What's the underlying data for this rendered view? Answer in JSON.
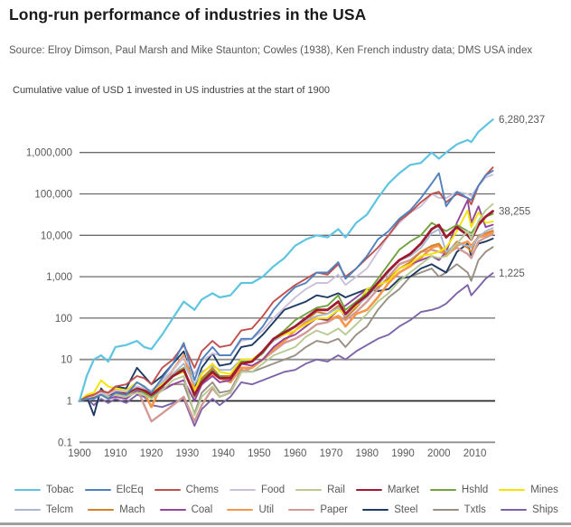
{
  "page": {
    "title": "Long-run performance of industries in the USA",
    "source_line": "Source: Elroy Dimson, Paul Marsh and Mike Staunton; Cowles (1938), Ken French industry data; DMS USA index",
    "subtitle": "Cumulative value of USD 1 invested in US industries at the start of 1900"
  },
  "colors": {
    "title_text": "#1a1a1a",
    "body_text": "#595959",
    "grid": "#6b6b6b",
    "grid_unit_line": "#262626",
    "grid_light": "#8f8f8f",
    "bottom_rule": "#9e9e9e"
  },
  "chart_data": {
    "type": "line",
    "title": "Cumulative value of USD 1 invested in US industries at the start of 1900",
    "xlabel": "",
    "ylabel": "",
    "y_scale": "log10",
    "x_range": [
      1900,
      2015
    ],
    "y_range": [
      0.1,
      7000000
    ],
    "grid": "horizontal-only",
    "legend_position": "bottom",
    "x_ticks": [
      1900,
      1910,
      1920,
      1930,
      1940,
      1950,
      1960,
      1970,
      1980,
      1990,
      2000,
      2010
    ],
    "y_ticks": [
      {
        "label": "0.1",
        "value": 0.1
      },
      {
        "label": "1",
        "value": 1
      },
      {
        "label": "10",
        "value": 10
      },
      {
        "label": "100",
        "value": 100
      },
      {
        "label": "1,000",
        "value": 1000
      },
      {
        "label": "10,000",
        "value": 10000
      },
      {
        "label": "100,000",
        "value": 100000
      },
      {
        "label": "1,000,000",
        "value": 1000000
      }
    ],
    "annotations": [
      {
        "text": "6,280,237",
        "series": "Tobac"
      },
      {
        "text": "38,255",
        "series": "Market"
      },
      {
        "text": "1,225",
        "series": "Ships"
      }
    ],
    "years": [
      1900,
      1902,
      1904,
      1906,
      1908,
      1910,
      1913,
      1916,
      1918,
      1920,
      1923,
      1926,
      1929,
      1932,
      1934,
      1937,
      1939,
      1942,
      1945,
      1948,
      1951,
      1954,
      1957,
      1960,
      1963,
      1966,
      1969,
      1972,
      1974,
      1977,
      1980,
      1983,
      1986,
      1989,
      1992,
      1995,
      1998,
      2000,
      2002,
      2005,
      2008,
      2009,
      2011,
      2013,
      2015
    ],
    "series": [
      {
        "name": "Tobac",
        "color": "#5fc4e1",
        "width": 2.2,
        "values": [
          1,
          4,
          10,
          12.6,
          8.9,
          20,
          22.4,
          28.2,
          20,
          17.8,
          39.8,
          100,
          251,
          158,
          282,
          398,
          316,
          355,
          708,
          708,
          1000,
          1780,
          2820,
          5620,
          7940,
          10000,
          8910,
          14100,
          8910,
          20000,
          31600,
          79400,
          178000,
          316000,
          501000,
          562000,
          1000000,
          708000,
          1000000,
          1580000,
          2000000,
          1780000,
          3160000,
          4470000,
          6280237
        ]
      },
      {
        "name": "ElcEq",
        "color": "#4f81bd",
        "width": 1.9,
        "values": [
          1,
          1.12,
          1.12,
          1.41,
          1.12,
          1.58,
          1.41,
          2.82,
          2.24,
          1.58,
          3.55,
          7.94,
          25.1,
          3.16,
          10,
          20,
          12.6,
          12.6,
          31.6,
          31.6,
          63.1,
          158,
          316,
          562,
          708,
          1260,
          1260,
          2240,
          891,
          1580,
          3160,
          7940,
          12600,
          25100,
          39800,
          79400,
          178000,
          316000,
          50100,
          112000,
          79400,
          70800,
          158000,
          282000,
          363000
        ]
      },
      {
        "name": "Chems",
        "color": "#c0504d",
        "width": 1.9,
        "values": [
          1,
          1.26,
          1.41,
          1.78,
          1.58,
          2.24,
          2.51,
          3.98,
          3.55,
          2.51,
          6.31,
          10,
          22.4,
          6.31,
          15.8,
          28.2,
          20,
          22.4,
          50.1,
          56.2,
          112,
          251,
          398,
          631,
          891,
          1260,
          1120,
          2000,
          1000,
          1580,
          2820,
          5010,
          10000,
          22400,
          35500,
          63100,
          100000,
          112000,
          63100,
          100000,
          79400,
          56200,
          158000,
          282000,
          437000
        ]
      },
      {
        "name": "Food",
        "color": "#ccc0da",
        "width": 1.9,
        "values": [
          1,
          1.2,
          1.32,
          1.58,
          1.41,
          1.78,
          1.66,
          2.24,
          2,
          1.78,
          3.16,
          5.62,
          11.2,
          4.47,
          8.91,
          14.1,
          12.6,
          12.6,
          28.2,
          31.6,
          50.1,
          100,
          178,
          316,
          501,
          708,
          708,
          1120,
          631,
          1000,
          1580,
          3980,
          10000,
          20000,
          35500,
          50100,
          100000,
          79400,
          79400,
          112000,
          100000,
          89100,
          158000,
          251000,
          290000
        ]
      },
      {
        "name": "Rail",
        "color": "#b7ca92",
        "width": 1.9,
        "values": [
          1,
          1.26,
          1.32,
          1.58,
          1.26,
          1.41,
          1.26,
          1.58,
          1.41,
          1.12,
          1.78,
          3.16,
          3.98,
          0.45,
          1.26,
          2.24,
          1.26,
          1.58,
          5.01,
          5.01,
          7.94,
          12.6,
          15.8,
          20,
          35.5,
          50.1,
          39.8,
          56.2,
          39.8,
          70.8,
          126,
          251,
          398,
          794,
          1260,
          2000,
          3160,
          2820,
          3160,
          6310,
          12600,
          7940,
          22400,
          39800,
          57000
        ]
      },
      {
        "name": "Market",
        "color": "#9e1b32",
        "width": 2.8,
        "values": [
          1,
          1.2,
          1.32,
          1.66,
          1.32,
          1.66,
          1.51,
          2.09,
          1.78,
          1.41,
          2.24,
          3.98,
          5.62,
          1.41,
          2.82,
          5.01,
          3.55,
          3.55,
          7.94,
          8.91,
          15.8,
          31.6,
          44.7,
          63.1,
          100,
          158,
          158,
          251,
          126,
          224,
          355,
          708,
          1410,
          2510,
          3550,
          6310,
          14100,
          17800,
          8910,
          15800,
          10000,
          7940,
          17800,
          28200,
          38255
        ]
      },
      {
        "name": "Hshld",
        "color": "#72a23f",
        "width": 1.9,
        "values": [
          1,
          1.12,
          1.26,
          1.51,
          1.26,
          1.58,
          1.41,
          2,
          1.58,
          1.26,
          2.24,
          3.98,
          6.31,
          1.26,
          3.16,
          5.62,
          3.98,
          3.55,
          8.91,
          8.91,
          14.1,
          31.6,
          50.1,
          89.1,
          126,
          178,
          200,
          355,
          158,
          251,
          398,
          891,
          2000,
          4470,
          7080,
          10000,
          20000,
          15800,
          12600,
          17800,
          12600,
          11200,
          20000,
          28200,
          33000
        ]
      },
      {
        "name": "Mines",
        "color": "#f5e400",
        "width": 1.9,
        "values": [
          1,
          1.41,
          1.58,
          3.16,
          2.24,
          2,
          1.78,
          2.82,
          2.24,
          1.58,
          2.51,
          3.98,
          5.01,
          1.78,
          4.47,
          7.94,
          5.01,
          4.47,
          10,
          10,
          15.8,
          31.6,
          39.8,
          50.1,
          70.8,
          100,
          100,
          158,
          126,
          200,
          501,
          631,
          794,
          1580,
          2000,
          3160,
          3550,
          3980,
          5010,
          12600,
          39800,
          15800,
          35500,
          20000,
          21500
        ]
      },
      {
        "name": "Telcm",
        "color": "#a8b8ce",
        "width": 1.9,
        "values": [
          1,
          1.2,
          1.41,
          1.58,
          1.41,
          1.78,
          1.78,
          2.24,
          2,
          1.78,
          2.82,
          4.47,
          7.94,
          2.51,
          5.01,
          7.08,
          5.62,
          5.62,
          10,
          10,
          15.8,
          28.2,
          39.8,
          63.1,
          89.1,
          112,
          126,
          178,
          112,
          200,
          316,
          631,
          1260,
          2510,
          3160,
          5010,
          11200,
          14100,
          3980,
          6310,
          5620,
          5010,
          8910,
          12600,
          15000
        ]
      },
      {
        "name": "Mach",
        "color": "#d5812c",
        "width": 1.9,
        "values": [
          1,
          1.26,
          1.41,
          1.78,
          1.41,
          2,
          1.78,
          2.82,
          2.24,
          1.26,
          2.82,
          4.47,
          6.31,
          1.26,
          3.55,
          6.31,
          3.98,
          3.98,
          8.91,
          8.91,
          15.8,
          31.6,
          44.7,
          63.1,
          89.1,
          141,
          126,
          200,
          100,
          178,
          355,
          562,
          891,
          1580,
          2240,
          3980,
          5620,
          6310,
          3550,
          7080,
          5010,
          3980,
          10000,
          11200,
          13000
        ]
      },
      {
        "name": "Coal",
        "color": "#93479c",
        "width": 1.9,
        "values": [
          1,
          1.26,
          1.12,
          1.41,
          1.12,
          1.26,
          1.12,
          1.78,
          1.58,
          1.26,
          1.78,
          2.51,
          3.16,
          1,
          2.51,
          3.98,
          2.82,
          3.16,
          7.94,
          7.08,
          10,
          20,
          31.6,
          39.8,
          63.1,
          100,
          89.1,
          158,
          200,
          316,
          501,
          631,
          794,
          1580,
          2000,
          2510,
          3160,
          2510,
          3980,
          20000,
          70800,
          20000,
          50100,
          15800,
          18000
        ]
      },
      {
        "name": "Util",
        "color": "#f79646",
        "width": 2.6,
        "values": [
          1,
          1.26,
          1.41,
          1.58,
          1.41,
          1.78,
          1.58,
          2,
          1.58,
          0.71,
          2.51,
          5.62,
          12.6,
          2,
          2.51,
          4.47,
          3.55,
          2.82,
          6.31,
          6.31,
          10,
          17.8,
          28.2,
          50.1,
          79.4,
          100,
          89.1,
          112,
          63.1,
          126,
          158,
          316,
          708,
          1260,
          1780,
          2820,
          5010,
          5620,
          3160,
          5620,
          7080,
          5620,
          8910,
          10000,
          12000
        ]
      },
      {
        "name": "Paper",
        "color": "#d29a96",
        "width": 2.4,
        "values": [
          1,
          1.12,
          1.26,
          1.58,
          1.26,
          1.58,
          1.26,
          2,
          0.79,
          0.32,
          0.5,
          0.79,
          1.26,
          0.32,
          0.79,
          2,
          1.26,
          1.58,
          5.01,
          6.31,
          10,
          15.8,
          25.1,
          31.6,
          44.7,
          70.8,
          79.4,
          112,
          89.1,
          141,
          251,
          501,
          1000,
          2000,
          2510,
          3980,
          4470,
          3980,
          3550,
          5010,
          3550,
          2820,
          7080,
          8910,
          10700
        ]
      },
      {
        "name": "Steel",
        "color": "#1e3a63",
        "width": 1.9,
        "values": [
          1,
          1.26,
          0.45,
          2,
          1.26,
          2.24,
          2,
          6.31,
          3.98,
          2.51,
          3.98,
          7.94,
          15.8,
          2,
          6.31,
          14.1,
          7.08,
          7.94,
          20,
          22.4,
          39.8,
          79.4,
          158,
          200,
          251,
          355,
          316,
          398,
          316,
          398,
          501,
          447,
          501,
          891,
          1000,
          1580,
          2000,
          1580,
          1260,
          3980,
          6310,
          3160,
          6310,
          7080,
          8300
        ]
      },
      {
        "name": "Txtls",
        "color": "#998f85",
        "width": 1.9,
        "values": [
          1,
          1.26,
          1.41,
          1.58,
          1.26,
          1.58,
          1.41,
          2.24,
          2,
          1.12,
          2,
          2.51,
          2.51,
          0.5,
          1.58,
          2.82,
          1.58,
          1.78,
          5.62,
          5.01,
          6.31,
          7.94,
          10,
          12.6,
          20,
          28.2,
          25.1,
          31.6,
          20,
          39.8,
          63.1,
          158,
          316,
          501,
          1000,
          1260,
          1580,
          1000,
          1260,
          2000,
          1260,
          794,
          2510,
          3980,
          5200
        ]
      },
      {
        "name": "Ships",
        "color": "#7d64a8",
        "width": 1.9,
        "values": [
          1,
          1.12,
          0.79,
          1.12,
          0.89,
          1.12,
          0.89,
          1.41,
          1.26,
          0.79,
          0.71,
          0.89,
          1.12,
          0.25,
          0.63,
          1.12,
          0.79,
          1.26,
          2.82,
          2.51,
          3.16,
          3.98,
          5.01,
          5.62,
          7.94,
          10,
          8.91,
          12.6,
          10,
          15.8,
          22.4,
          31.6,
          39.8,
          63.1,
          89.1,
          141,
          158,
          178,
          224,
          398,
          631,
          355,
          562,
          891,
          1225
        ]
      }
    ]
  }
}
